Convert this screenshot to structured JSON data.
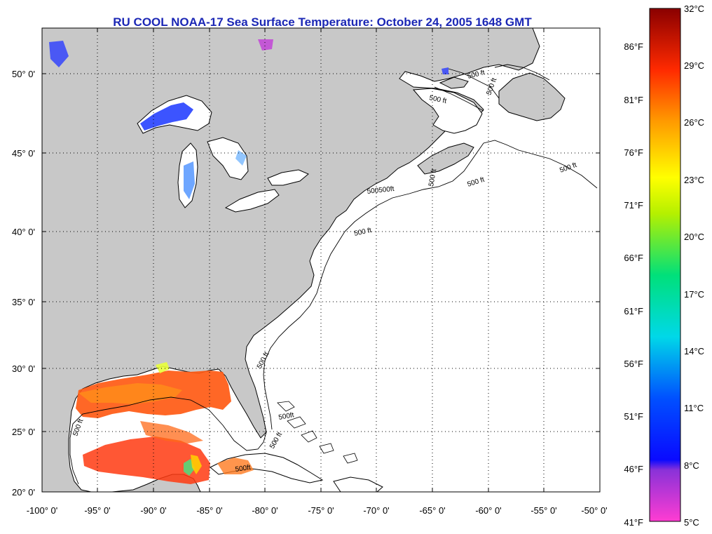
{
  "title": "RU COOL  NOAA-17  Sea Surface Temperature:  October 24, 2005 1648 GMT",
  "lat_labels": [
    "50° 0'",
    "45° 0'",
    "40° 0'",
    "35° 0'",
    "30° 0'",
    "25° 0'",
    "20° 0'"
  ],
  "lon_labels": [
    "-100° 0'",
    "-95° 0'",
    "-90° 0'",
    "-85° 0'",
    "-80° 0'",
    "-75° 0'",
    "-70° 0'",
    "-65° 0'",
    "-60° 0'",
    "-55° 0'",
    "-50° 0'"
  ],
  "isobath_label": "500 ft",
  "isobath_cluster_label": "500500ft",
  "isobath_small_label": "500ft",
  "colorbar": {
    "celsius": [
      "32°C",
      "29°C",
      "26°C",
      "23°C",
      "20°C",
      "17°C",
      "14°C",
      "11°C",
      "8°C",
      "5°C"
    ],
    "fahrenheit": [
      "86°F",
      "81°F",
      "76°F",
      "71°F",
      "66°F",
      "61°F",
      "56°F",
      "51°F",
      "46°F",
      "41°F"
    ]
  },
  "colors": {
    "land": "#c8c8c8",
    "ocean": "#ffffff",
    "title": "#1b27b5"
  }
}
